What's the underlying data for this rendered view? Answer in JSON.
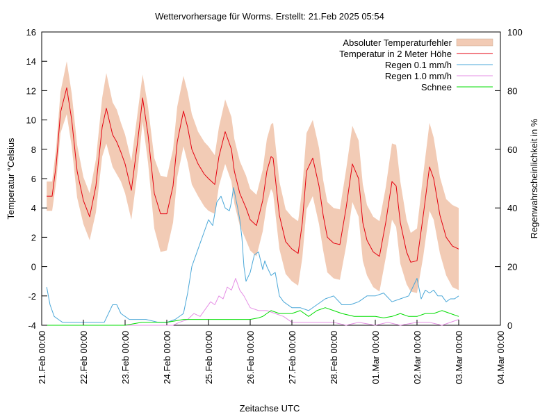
{
  "chart_data": {
    "type": "line",
    "title": "Wettervorhersage für Worms. Erstellt: 21.Feb 2025 05:54",
    "xlabel": "Zeitachse UTC",
    "ylabel_left": "Temperatur °Celsius",
    "ylabel_right": "Regenwahrscheinlichkeit in %",
    "y_left_range": [
      -4,
      16
    ],
    "y_right_range": [
      0,
      100
    ],
    "x_range_days": [
      0,
      11
    ],
    "y_left_ticks": [
      "16",
      "14",
      "12",
      "10",
      "8",
      "6",
      "4",
      "2",
      "0",
      "-2",
      "-4"
    ],
    "y_right_ticks": [
      "100",
      "80",
      "60",
      "40",
      "20",
      "0"
    ],
    "x_ticks": [
      "21.Feb 00:00",
      "22.Feb 00:00",
      "23.Feb 00:00",
      "24.Feb 00:00",
      "25.Feb 00:00",
      "26.Feb 00:00",
      "27.Feb 00:00",
      "28.Feb 00:00",
      "01.Mar 00:00",
      "02.Mar 00:00",
      "03.Mar 00:00",
      "04.Mar 00:00"
    ],
    "legend_position": "top-right",
    "series": [
      {
        "name": "Absoluter Temperaturfehler",
        "kind": "band",
        "color": "#f2cbb5"
      },
      {
        "name": "Temperatur in 2 Meter Höhe",
        "kind": "line",
        "axis": "left",
        "color": "#e4000f"
      },
      {
        "name": "Regen 0.1 mm/h",
        "kind": "line",
        "axis": "right",
        "color": "#4aa7d8"
      },
      {
        "name": "Regen 1.0 mm/h",
        "kind": "line",
        "axis": "right",
        "color": "#e58ee5"
      },
      {
        "name": "Schnee",
        "kind": "line",
        "axis": "right",
        "color": "#00dd00"
      }
    ],
    "temperature": {
      "x": [
        0.12,
        0.25,
        0.35,
        0.45,
        0.6,
        0.72,
        0.85,
        1.0,
        1.15,
        1.3,
        1.45,
        1.55,
        1.7,
        1.8,
        1.9,
        2.0,
        2.15,
        2.3,
        2.42,
        2.55,
        2.7,
        2.85,
        3.0,
        3.15,
        3.25,
        3.4,
        3.5,
        3.6,
        3.75,
        3.9,
        4.0,
        4.15,
        4.25,
        4.4,
        4.55,
        4.62,
        4.75,
        4.9,
        5.0,
        5.15,
        5.3,
        5.4,
        5.5,
        5.55,
        5.7,
        5.85,
        6.0,
        6.15,
        6.25,
        6.35,
        6.5,
        6.65,
        6.75,
        6.85,
        7.0,
        7.15,
        7.3,
        7.45,
        7.6,
        7.7,
        7.8,
        7.95,
        8.1,
        8.25,
        8.4,
        8.5,
        8.6,
        8.75,
        8.85,
        9.0,
        9.15,
        9.3,
        9.4,
        9.55,
        9.7,
        9.85,
        10.0
      ],
      "y": [
        4.8,
        4.8,
        7.0,
        10.5,
        12.2,
        10.0,
        6.5,
        4.5,
        3.4,
        5.5,
        9.5,
        10.8,
        9.0,
        8.5,
        7.8,
        7.0,
        5.2,
        8.5,
        11.5,
        9.0,
        5.0,
        3.6,
        3.6,
        5.5,
        8.5,
        10.6,
        9.5,
        8.0,
        7.0,
        6.3,
        6.0,
        5.6,
        7.5,
        9.2,
        8.0,
        6.5,
        5.0,
        4.0,
        3.2,
        2.8,
        4.5,
        6.5,
        7.5,
        7.4,
        3.5,
        1.7,
        1.2,
        0.9,
        3.0,
        6.5,
        7.4,
        5.5,
        3.5,
        2.0,
        1.6,
        1.5,
        4.0,
        7.0,
        6.0,
        3.0,
        1.8,
        1.0,
        0.7,
        3.0,
        5.8,
        5.5,
        3.0,
        1.0,
        0.3,
        0.4,
        3.5,
        6.8,
        6.0,
        3.5,
        2.0,
        1.4,
        1.2
      ],
      "error": [
        1.0,
        1.0,
        1.2,
        1.4,
        1.8,
        1.8,
        1.8,
        1.6,
        1.6,
        1.8,
        2.0,
        2.4,
        2.2,
        2.2,
        2.0,
        2.0,
        2.0,
        2.0,
        1.6,
        1.9,
        2.4,
        2.6,
        2.5,
        2.5,
        2.4,
        2.4,
        2.4,
        2.4,
        2.2,
        2.2,
        2.2,
        2.0,
        2.0,
        2.2,
        2.2,
        2.2,
        2.2,
        2.2,
        2.1,
        2.1,
        2.1,
        2.2,
        2.2,
        2.4,
        2.3,
        2.2,
        2.2,
        2.2,
        2.4,
        2.6,
        2.6,
        2.6,
        2.4,
        2.4,
        2.4,
        2.4,
        2.6,
        2.6,
        2.6,
        2.6,
        2.4,
        2.4,
        2.4,
        2.4,
        2.6,
        2.8,
        2.8,
        2.2,
        2.0,
        2.2,
        2.8,
        3.0,
        2.8,
        2.6,
        2.6,
        2.8,
        2.8
      ]
    },
    "rain_01": {
      "x": [
        0.12,
        0.2,
        0.3,
        0.4,
        0.5,
        1.0,
        1.5,
        1.7,
        1.8,
        1.9,
        2.0,
        2.1,
        2.3,
        2.5,
        2.8,
        3.0,
        3.2,
        3.4,
        3.5,
        3.6,
        3.7,
        3.8,
        3.9,
        4.0,
        4.1,
        4.2,
        4.3,
        4.4,
        4.5,
        4.55,
        4.6,
        4.7,
        4.75,
        4.8,
        4.85,
        4.9,
        5.0,
        5.1,
        5.2,
        5.3,
        5.35,
        5.4,
        5.5,
        5.6,
        5.7,
        5.8,
        6.0,
        6.2,
        6.4,
        6.6,
        6.8,
        7.0,
        7.2,
        7.4,
        7.6,
        7.8,
        8.0,
        8.2,
        8.4,
        8.6,
        8.8,
        9.0,
        9.1,
        9.2,
        9.3,
        9.4,
        9.5,
        9.6,
        9.7,
        9.8,
        9.9,
        10.0
      ],
      "y": [
        13,
        7,
        3,
        2,
        1,
        1,
        1,
        7,
        7,
        4,
        3,
        2,
        2,
        2,
        1,
        1,
        2,
        4,
        11,
        20,
        24,
        28,
        32,
        36,
        34,
        42,
        44,
        40,
        39,
        42,
        47,
        40,
        36,
        30,
        20,
        15,
        18,
        24,
        25,
        19,
        22,
        20,
        17,
        18,
        10,
        8,
        6,
        6,
        5,
        7,
        9,
        10,
        7,
        7,
        8,
        10,
        10,
        11,
        8,
        9,
        10,
        16,
        9,
        12,
        11,
        12,
        10,
        10,
        8,
        9,
        9,
        10
      ]
    },
    "rain_10": {
      "x": [
        0.12,
        1.0,
        2.0,
        3.0,
        3.15,
        3.3,
        3.5,
        3.65,
        3.8,
        3.95,
        4.05,
        4.15,
        4.25,
        4.35,
        4.45,
        4.55,
        4.65,
        4.75,
        4.85,
        5.0,
        5.2,
        5.4,
        5.6,
        5.8,
        6.0,
        6.3,
        6.6,
        7.0,
        7.3,
        7.6,
        8.0,
        8.3,
        8.6,
        9.0,
        9.3,
        9.6,
        10.0
      ],
      "y": [
        0,
        0,
        0,
        0,
        0,
        1,
        2,
        4,
        3,
        6,
        8,
        7,
        10,
        9,
        13,
        12,
        16,
        12,
        10,
        6,
        5,
        5,
        4,
        3,
        1,
        1,
        1,
        1,
        0,
        1,
        0,
        1,
        0,
        1,
        1,
        0,
        2
      ]
    },
    "snow": {
      "x": [
        0.12,
        2.0,
        2.2,
        2.4,
        2.6,
        2.8,
        3.0,
        3.2,
        3.4,
        3.6,
        4.0,
        4.5,
        4.8,
        5.0,
        5.2,
        5.3,
        5.5,
        5.7,
        6.0,
        6.2,
        6.4,
        6.6,
        6.8,
        7.0,
        7.2,
        7.5,
        7.8,
        8.0,
        8.2,
        8.4,
        8.6,
        8.8,
        9.0,
        9.2,
        9.4,
        9.6,
        9.8,
        10.0
      ],
      "y": [
        0,
        0,
        0.5,
        1,
        1,
        1,
        1,
        1.5,
        2,
        2,
        2,
        2,
        2,
        2,
        2.5,
        3,
        5,
        4,
        4,
        5,
        3,
        5,
        6,
        5,
        4,
        3,
        3,
        3,
        2.5,
        3,
        4,
        3,
        3,
        4,
        4,
        5,
        4,
        3
      ]
    }
  }
}
